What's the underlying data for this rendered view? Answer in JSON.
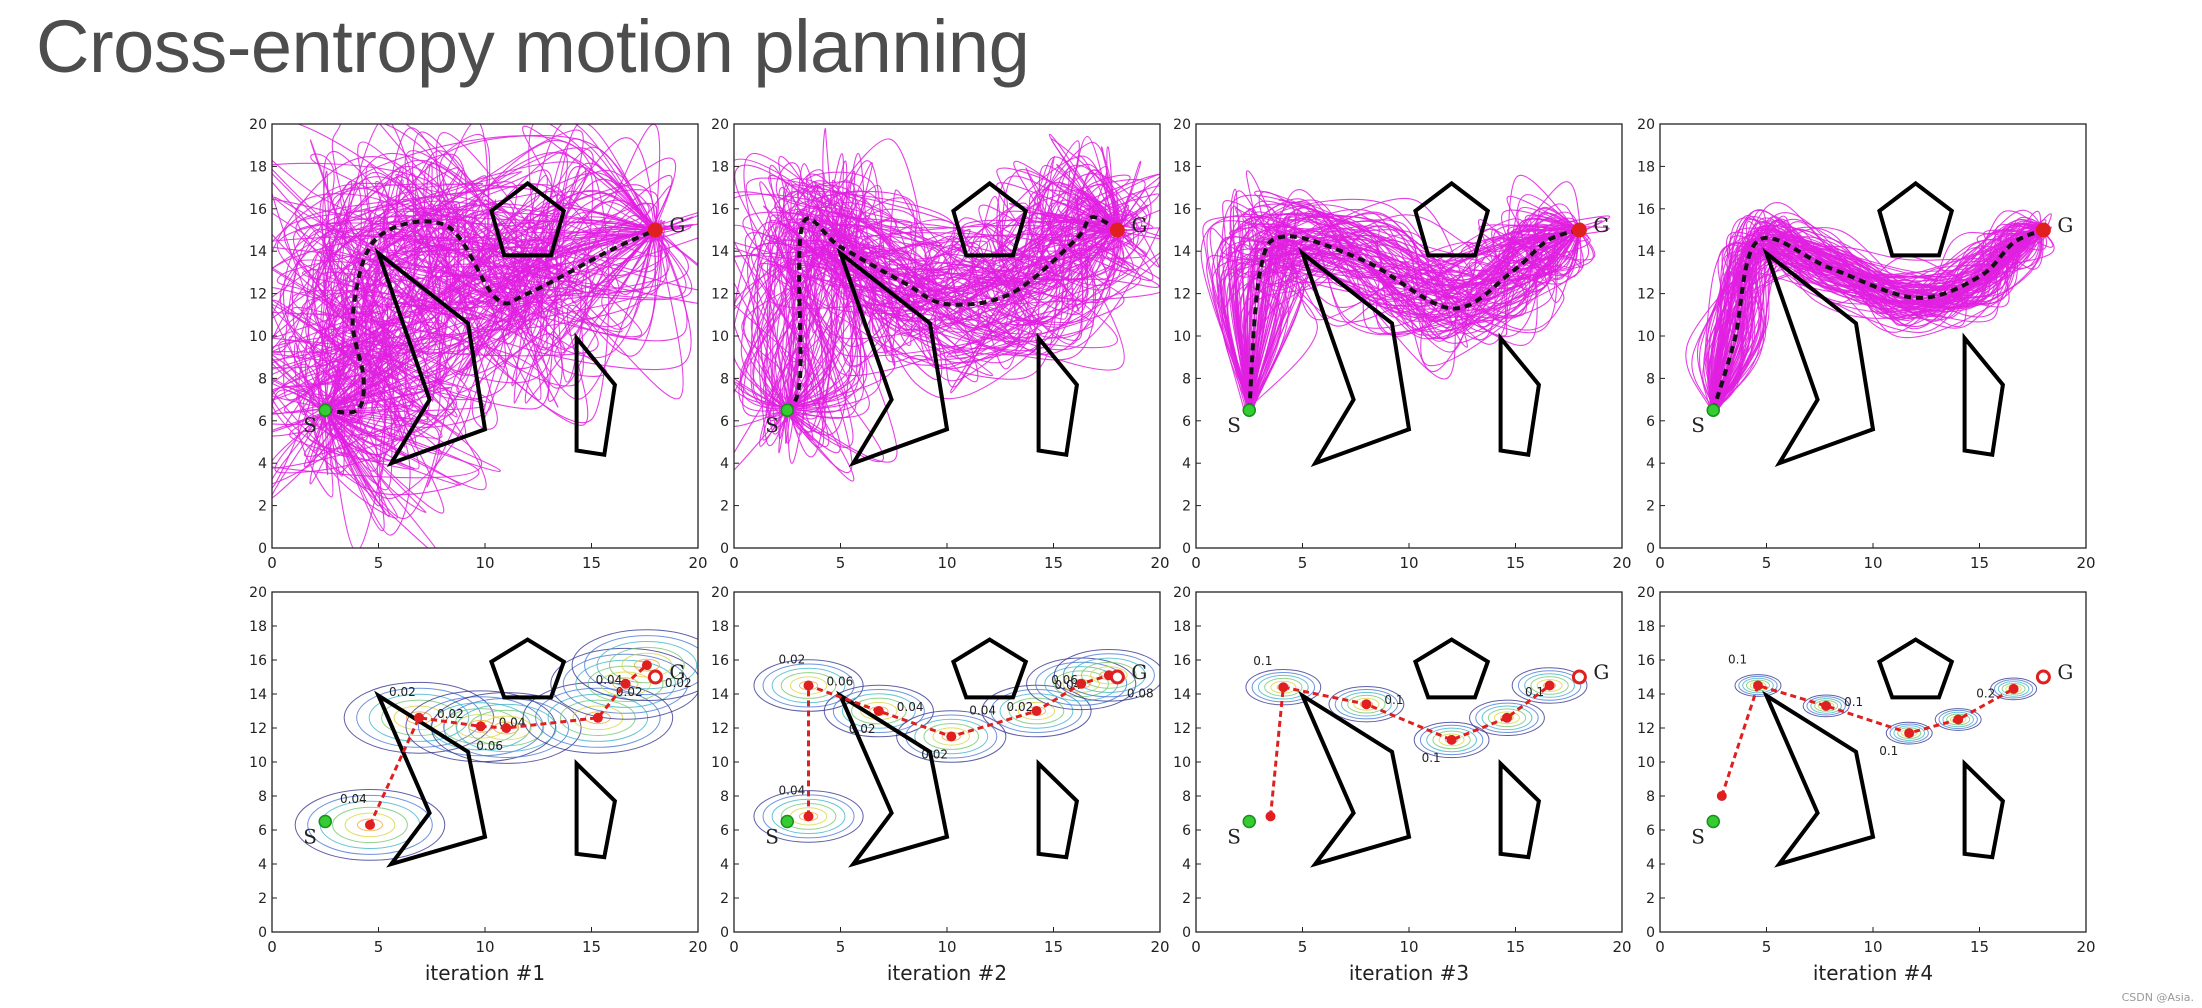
{
  "slide": {
    "title": "Cross-entropy motion planning"
  },
  "watermark": "CSDN @Asia.",
  "colors": {
    "trajectory": "#e020e0",
    "mean_path": "#111111",
    "waypoint": "#e02020",
    "start": "#33cc33",
    "goal": "#e02020",
    "obstacle": "#000000"
  },
  "chart_data": {
    "type": "diagram-grid",
    "xlim": [
      0,
      20
    ],
    "ylim": [
      0,
      20
    ],
    "x_ticks": [
      0,
      5,
      10,
      15,
      20
    ],
    "y_ticks": [
      0,
      2,
      4,
      6,
      8,
      10,
      12,
      14,
      16,
      18,
      20
    ],
    "start": {
      "label": "S",
      "x": 2.5,
      "y": 6.5
    },
    "goal": {
      "label": "G",
      "x": 18,
      "y": 15
    },
    "obstacles": [
      {
        "name": "pentagon",
        "points": [
          [
            12,
            17.2
          ],
          [
            13.7,
            15.9
          ],
          [
            13.1,
            13.8
          ],
          [
            10.9,
            13.8
          ],
          [
            10.3,
            15.9
          ]
        ]
      },
      {
        "name": "chevron",
        "points": [
          [
            5,
            13.9
          ],
          [
            9.2,
            10.6
          ],
          [
            10,
            5.6
          ],
          [
            5.6,
            4
          ],
          [
            7.4,
            7
          ]
        ]
      },
      {
        "name": "quad",
        "points": [
          [
            14.3,
            9.9
          ],
          [
            16.1,
            7.7
          ],
          [
            15.6,
            4.4
          ],
          [
            14.3,
            4.6
          ]
        ]
      }
    ],
    "iterations": [
      {
        "label": "iteration #1",
        "mean_path": [
          [
            2.5,
            6.5
          ],
          [
            4,
            6.5
          ],
          [
            4.3,
            8
          ],
          [
            3.8,
            11
          ],
          [
            4.9,
            14.6
          ],
          [
            8.2,
            15.2
          ],
          [
            10.5,
            11.8
          ],
          [
            12,
            12
          ],
          [
            15.8,
            14
          ],
          [
            18,
            15
          ]
        ],
        "trajectory_spread": 4.8,
        "waypoints": [
          [
            4.6,
            6.3
          ],
          [
            6.9,
            12.6
          ],
          [
            9.8,
            12.1
          ],
          [
            11,
            12
          ],
          [
            15.3,
            12.6
          ],
          [
            16.6,
            14.6
          ],
          [
            17.6,
            15.7
          ]
        ],
        "contour_levels": [
          "0.02",
          "0.04",
          "0.06",
          "0.02",
          "0.04",
          "0.02",
          "0.04",
          "0.02"
        ]
      },
      {
        "label": "iteration #2",
        "mean_path": [
          [
            2.5,
            6.5
          ],
          [
            3.1,
            8
          ],
          [
            3.2,
            15.2
          ],
          [
            5,
            14.2
          ],
          [
            8,
            12.5
          ],
          [
            10,
            11.5
          ],
          [
            13,
            12
          ],
          [
            16,
            14.5
          ],
          [
            16.8,
            15.6
          ],
          [
            18,
            15
          ]
        ],
        "trajectory_spread": 3.4,
        "waypoints": [
          [
            3.5,
            6.8
          ],
          [
            3.5,
            14.5
          ],
          [
            6.8,
            13
          ],
          [
            10.2,
            11.5
          ],
          [
            14.2,
            13
          ],
          [
            16.3,
            14.6
          ],
          [
            17.6,
            15.1
          ]
        ],
        "contour_levels": [
          "0.02",
          "0.04",
          "0.02",
          "0.04",
          "0.06",
          "0.08",
          "0.04",
          "0.06",
          "0.02",
          "0.04",
          "0.02"
        ]
      },
      {
        "label": "iteration #3",
        "mean_path": [
          [
            2.5,
            6.5
          ],
          [
            3,
            13
          ],
          [
            4.2,
            14.7
          ],
          [
            8,
            13.5
          ],
          [
            12,
            11.3
          ],
          [
            14.8,
            13
          ],
          [
            16.5,
            14.5
          ],
          [
            18,
            15
          ]
        ],
        "trajectory_spread": 2.2,
        "waypoints": [
          [
            3.5,
            6.8
          ],
          [
            4.1,
            14.4
          ],
          [
            8,
            13.4
          ],
          [
            12,
            11.3
          ],
          [
            14.6,
            12.6
          ],
          [
            16.6,
            14.5
          ]
        ],
        "contour_levels": [
          "0.1",
          "0.1",
          "0.1",
          "0.1"
        ]
      },
      {
        "label": "iteration #4",
        "mean_path": [
          [
            2.5,
            6.5
          ],
          [
            3.5,
            9.8
          ],
          [
            4.6,
            14.5
          ],
          [
            8,
            13.2
          ],
          [
            12,
            11.8
          ],
          [
            15,
            12.8
          ],
          [
            16.6,
            14.4
          ],
          [
            18,
            15
          ]
        ],
        "trajectory_spread": 1.3,
        "waypoints": [
          [
            2.9,
            8
          ],
          [
            4.6,
            14.5
          ],
          [
            7.8,
            13.3
          ],
          [
            11.7,
            11.7
          ],
          [
            14,
            12.5
          ],
          [
            16.6,
            14.3
          ]
        ],
        "contour_levels": [
          "0.1",
          "0.1",
          "0.1",
          "0.2"
        ]
      }
    ]
  }
}
